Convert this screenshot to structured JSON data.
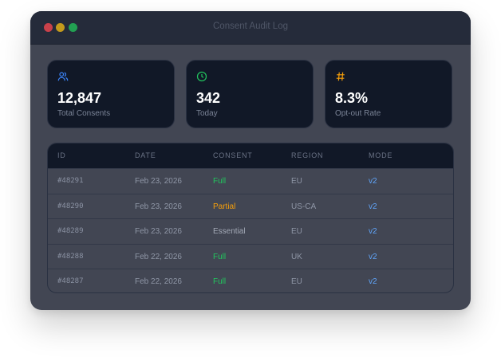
{
  "window": {
    "title": "Consent Audit Log"
  },
  "stats": [
    {
      "icon": "users-icon",
      "value": "12,847",
      "label": "Total Consents",
      "color": "#3b82f6"
    },
    {
      "icon": "clock-icon",
      "value": "342",
      "label": "Today",
      "color": "#22c55e"
    },
    {
      "icon": "hash-icon",
      "value": "8.3%",
      "label": "Opt-out Rate",
      "color": "#f59e0b"
    }
  ],
  "table": {
    "columns": [
      "ID",
      "DATE",
      "CONSENT",
      "REGION",
      "MODE"
    ],
    "rows": [
      {
        "id": "#48291",
        "date": "Feb 23, 2026",
        "consent": "Full",
        "region": "EU",
        "mode": "v2"
      },
      {
        "id": "#48290",
        "date": "Feb 23, 2026",
        "consent": "Partial",
        "region": "US-CA",
        "mode": "v2"
      },
      {
        "id": "#48289",
        "date": "Feb 23, 2026",
        "consent": "Essential",
        "region": "EU",
        "mode": "v2"
      },
      {
        "id": "#48288",
        "date": "Feb 22, 2026",
        "consent": "Full",
        "region": "UK",
        "mode": "v2"
      },
      {
        "id": "#48287",
        "date": "Feb 22, 2026",
        "consent": "Full",
        "region": "EU",
        "mode": "v2"
      }
    ]
  },
  "colors": {
    "full": "#22c55e",
    "partial": "#f59e0b",
    "essential": "#a3a9b6",
    "mode": "#60a5fa"
  }
}
